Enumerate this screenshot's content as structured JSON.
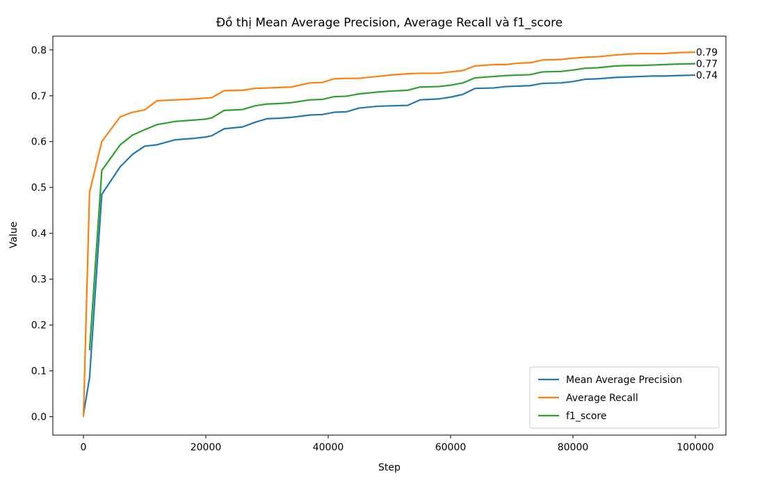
{
  "chart_data": {
    "type": "line",
    "title": "Đồ thị Mean Average Precision, Average Recall và f1_score",
    "xlabel": "Step",
    "ylabel": "Value",
    "xlim": [
      -5000,
      105000
    ],
    "ylim": [
      -0.04,
      0.83
    ],
    "xticks": [
      0,
      20000,
      40000,
      60000,
      80000,
      100000
    ],
    "xtick_labels": [
      "0",
      "20000",
      "40000",
      "60000",
      "80000",
      "100000"
    ],
    "yticks": [
      0.0,
      0.1,
      0.2,
      0.3,
      0.4,
      0.5,
      0.6,
      0.7,
      0.8
    ],
    "ytick_labels": [
      "0.0",
      "0.1",
      "0.2",
      "0.3",
      "0.4",
      "0.5",
      "0.6",
      "0.7",
      "0.8"
    ],
    "grid": false,
    "legend_position": "bottom-right",
    "series": [
      {
        "name": "Mean Average Precision",
        "color": "#1f77b4",
        "end_label": "0.74",
        "x": [
          0,
          1000,
          3000,
          6000,
          8000,
          10000,
          12000,
          15000,
          18000,
          20000,
          21000,
          23000,
          26000,
          28000,
          30000,
          32000,
          34000,
          37000,
          39000,
          41000,
          43000,
          45000,
          48000,
          50000,
          53000,
          55000,
          58000,
          60000,
          62000,
          64000,
          67000,
          69000,
          71000,
          73000,
          75000,
          78000,
          80000,
          82000,
          84000,
          87000,
          89000,
          91000,
          93000,
          95000,
          97000,
          100000
        ],
        "y": [
          0.005,
          0.085,
          0.485,
          0.545,
          0.572,
          0.59,
          0.593,
          0.604,
          0.607,
          0.61,
          0.613,
          0.628,
          0.632,
          0.642,
          0.65,
          0.651,
          0.653,
          0.658,
          0.659,
          0.664,
          0.665,
          0.673,
          0.677,
          0.678,
          0.679,
          0.691,
          0.693,
          0.697,
          0.703,
          0.716,
          0.717,
          0.72,
          0.721,
          0.722,
          0.727,
          0.728,
          0.731,
          0.736,
          0.737,
          0.74,
          0.741,
          0.742,
          0.743,
          0.743,
          0.744,
          0.745
        ]
      },
      {
        "name": "Average Recall",
        "color": "#ff7f0e",
        "end_label": "0.79",
        "x": [
          0,
          1000,
          3000,
          6000,
          8000,
          10000,
          12000,
          15000,
          18000,
          20000,
          21000,
          23000,
          26000,
          28000,
          30000,
          32000,
          34000,
          37000,
          39000,
          41000,
          43000,
          45000,
          48000,
          50000,
          53000,
          55000,
          58000,
          60000,
          62000,
          64000,
          67000,
          69000,
          71000,
          73000,
          75000,
          78000,
          80000,
          82000,
          84000,
          87000,
          89000,
          91000,
          93000,
          95000,
          97000,
          100000
        ],
        "y": [
          0.0,
          0.49,
          0.6,
          0.654,
          0.664,
          0.669,
          0.689,
          0.691,
          0.693,
          0.695,
          0.696,
          0.711,
          0.712,
          0.716,
          0.717,
          0.718,
          0.719,
          0.728,
          0.729,
          0.737,
          0.738,
          0.738,
          0.742,
          0.745,
          0.748,
          0.749,
          0.749,
          0.752,
          0.755,
          0.765,
          0.768,
          0.768,
          0.771,
          0.772,
          0.778,
          0.779,
          0.782,
          0.784,
          0.785,
          0.789,
          0.791,
          0.792,
          0.792,
          0.792,
          0.794,
          0.795
        ]
      },
      {
        "name": "f1_score",
        "color": "#2ca02c",
        "end_label": "0.77",
        "x": [
          1000,
          3000,
          6000,
          8000,
          10000,
          12000,
          15000,
          18000,
          20000,
          21000,
          23000,
          26000,
          28000,
          30000,
          32000,
          34000,
          37000,
          39000,
          41000,
          43000,
          45000,
          48000,
          50000,
          53000,
          55000,
          58000,
          60000,
          62000,
          64000,
          67000,
          69000,
          71000,
          73000,
          75000,
          78000,
          80000,
          82000,
          84000,
          87000,
          89000,
          91000,
          93000,
          95000,
          97000,
          100000
        ],
        "y": [
          0.145,
          0.537,
          0.593,
          0.614,
          0.626,
          0.637,
          0.644,
          0.647,
          0.649,
          0.652,
          0.668,
          0.67,
          0.678,
          0.682,
          0.683,
          0.685,
          0.691,
          0.692,
          0.698,
          0.699,
          0.704,
          0.708,
          0.71,
          0.712,
          0.719,
          0.72,
          0.723,
          0.728,
          0.739,
          0.742,
          0.744,
          0.745,
          0.746,
          0.752,
          0.753,
          0.756,
          0.76,
          0.761,
          0.765,
          0.766,
          0.766,
          0.767,
          0.768,
          0.769,
          0.77
        ]
      }
    ]
  }
}
